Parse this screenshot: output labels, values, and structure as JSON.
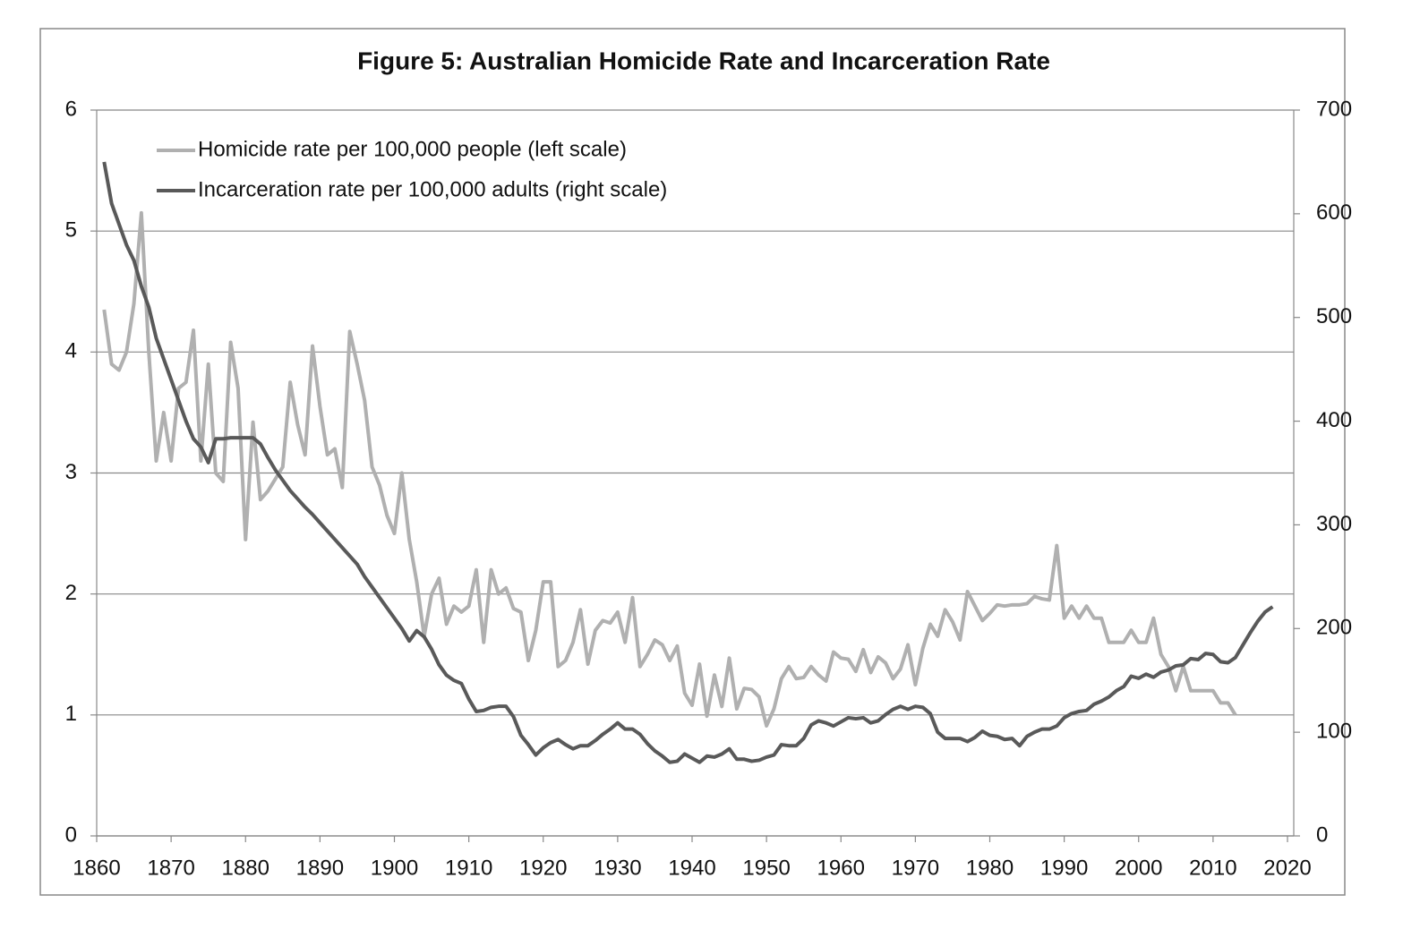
{
  "chart_data": {
    "type": "line",
    "title": "Figure 5: Australian Homicide Rate and Incarceration Rate",
    "x": [
      1861,
      1862,
      1863,
      1864,
      1865,
      1866,
      1867,
      1868,
      1869,
      1870,
      1871,
      1872,
      1873,
      1874,
      1875,
      1876,
      1877,
      1878,
      1879,
      1880,
      1881,
      1882,
      1883,
      1884,
      1885,
      1886,
      1887,
      1888,
      1889,
      1890,
      1891,
      1892,
      1893,
      1894,
      1895,
      1896,
      1897,
      1898,
      1899,
      1900,
      1901,
      1902,
      1903,
      1904,
      1905,
      1906,
      1907,
      1908,
      1909,
      1910,
      1911,
      1912,
      1913,
      1914,
      1915,
      1916,
      1917,
      1918,
      1919,
      1920,
      1921,
      1922,
      1923,
      1924,
      1925,
      1926,
      1927,
      1928,
      1929,
      1930,
      1931,
      1932,
      1933,
      1934,
      1935,
      1936,
      1937,
      1938,
      1939,
      1940,
      1941,
      1942,
      1943,
      1944,
      1945,
      1946,
      1947,
      1948,
      1949,
      1950,
      1951,
      1952,
      1953,
      1954,
      1955,
      1956,
      1957,
      1958,
      1959,
      1960,
      1961,
      1962,
      1963,
      1964,
      1965,
      1966,
      1967,
      1968,
      1969,
      1970,
      1971,
      1972,
      1973,
      1974,
      1975,
      1976,
      1977,
      1978,
      1979,
      1980,
      1981,
      1982,
      1983,
      1984,
      1985,
      1986,
      1987,
      1988,
      1989,
      1990,
      1991,
      1992,
      1993,
      1994,
      1995,
      1996,
      1997,
      1998,
      1999,
      2000,
      2001,
      2002,
      2003,
      2004,
      2005,
      2006,
      2007,
      2008,
      2009,
      2010,
      2011,
      2012,
      2013,
      2014,
      2015,
      2016,
      2017,
      2018
    ],
    "series": [
      {
        "name": "Homicide rate per 100,000 people (left scale)",
        "color": "#b0b0b0",
        "axis": "y",
        "values": [
          4.35,
          3.9,
          3.85,
          4.0,
          4.4,
          5.15,
          4.0,
          3.1,
          3.5,
          3.1,
          3.7,
          3.75,
          4.18,
          3.1,
          3.9,
          3.0,
          2.93,
          4.08,
          3.7,
          2.45,
          3.42,
          2.78,
          2.85,
          2.95,
          3.05,
          3.75,
          3.4,
          3.15,
          4.05,
          3.55,
          3.15,
          3.2,
          2.88,
          4.17,
          3.9,
          3.6,
          3.05,
          2.9,
          2.65,
          2.5,
          3.0,
          2.45,
          2.1,
          1.65,
          2.0,
          2.13,
          1.75,
          1.9,
          1.85,
          1.9,
          2.2,
          1.6,
          2.2,
          2.0,
          2.05,
          1.88,
          1.85,
          1.45,
          1.7,
          2.1,
          2.1,
          1.4,
          1.45,
          1.6,
          1.87,
          1.42,
          1.7,
          1.78,
          1.76,
          1.85,
          1.6,
          1.97,
          1.4,
          1.5,
          1.62,
          1.58,
          1.45,
          1.57,
          1.18,
          1.08,
          1.42,
          0.99,
          1.33,
          1.07,
          1.47,
          1.05,
          1.22,
          1.21,
          1.15,
          0.91,
          1.05,
          1.3,
          1.4,
          1.3,
          1.31,
          1.4,
          1.33,
          1.28,
          1.52,
          1.47,
          1.46,
          1.36,
          1.54,
          1.35,
          1.48,
          1.43,
          1.3,
          1.38,
          1.58,
          1.25,
          1.55,
          1.75,
          1.65,
          1.87,
          1.77,
          1.62,
          2.02,
          1.9,
          1.78,
          1.84,
          1.91,
          1.9,
          1.91,
          1.91,
          1.92,
          1.98,
          1.96,
          1.95,
          2.4,
          1.8,
          1.9,
          1.8,
          1.9,
          1.8,
          1.8,
          1.6,
          1.6,
          1.6,
          1.7,
          1.6,
          1.6,
          1.8,
          1.5,
          1.4,
          1.2,
          1.4,
          1.2,
          1.2,
          1.2,
          1.2,
          1.1,
          1.1,
          1.0,
          null,
          null,
          null,
          null,
          null
        ]
      },
      {
        "name": "Incarceration rate per 100,000 adults (right scale)",
        "color": "#595959",
        "axis": "y2",
        "values": [
          650,
          610,
          590,
          570,
          555,
          530,
          510,
          480,
          460,
          440,
          420,
          400,
          383,
          375,
          360,
          383,
          383,
          384,
          384,
          384,
          384,
          378,
          365,
          353,
          343,
          333,
          325,
          317,
          310,
          302,
          294,
          286,
          278,
          270,
          262,
          250,
          240,
          230,
          220,
          210,
          200,
          188,
          198,
          192,
          180,
          165,
          155,
          150,
          147,
          132,
          120,
          121,
          124,
          125,
          125,
          115,
          97,
          88,
          78,
          85,
          90,
          93,
          88,
          84,
          87,
          87,
          92,
          98,
          103,
          109,
          103,
          103,
          98,
          89,
          82,
          77,
          71,
          72,
          79,
          75,
          71,
          77,
          76,
          79,
          84,
          74,
          74,
          72,
          73,
          76,
          78,
          88,
          87,
          87,
          94,
          107,
          111,
          109,
          106,
          110,
          114,
          113,
          114,
          109,
          111,
          117,
          122,
          125,
          122,
          125,
          124,
          118,
          100,
          94,
          94,
          94,
          91,
          95,
          101,
          97,
          96,
          93,
          94,
          87,
          96,
          100,
          103,
          103,
          106,
          114,
          118,
          120,
          121,
          127,
          130,
          134,
          140,
          144,
          154,
          152,
          156,
          153,
          158,
          160,
          164,
          165,
          171,
          170,
          176,
          175,
          168,
          167,
          172,
          184,
          196,
          207,
          216,
          221
        ]
      }
    ],
    "xlim": [
      1860,
      2020
    ],
    "xticks": [
      1860,
      1870,
      1880,
      1890,
      1900,
      1910,
      1920,
      1930,
      1940,
      1950,
      1960,
      1970,
      1980,
      1990,
      2000,
      2010,
      2020
    ],
    "ylim": [
      0,
      6
    ],
    "yticks": [
      0,
      1,
      2,
      3,
      4,
      5,
      6
    ],
    "y2lim": [
      0,
      700
    ],
    "y2ticks": [
      0,
      100,
      200,
      300,
      400,
      500,
      600,
      700
    ],
    "grid": true,
    "legend": "upper left"
  }
}
